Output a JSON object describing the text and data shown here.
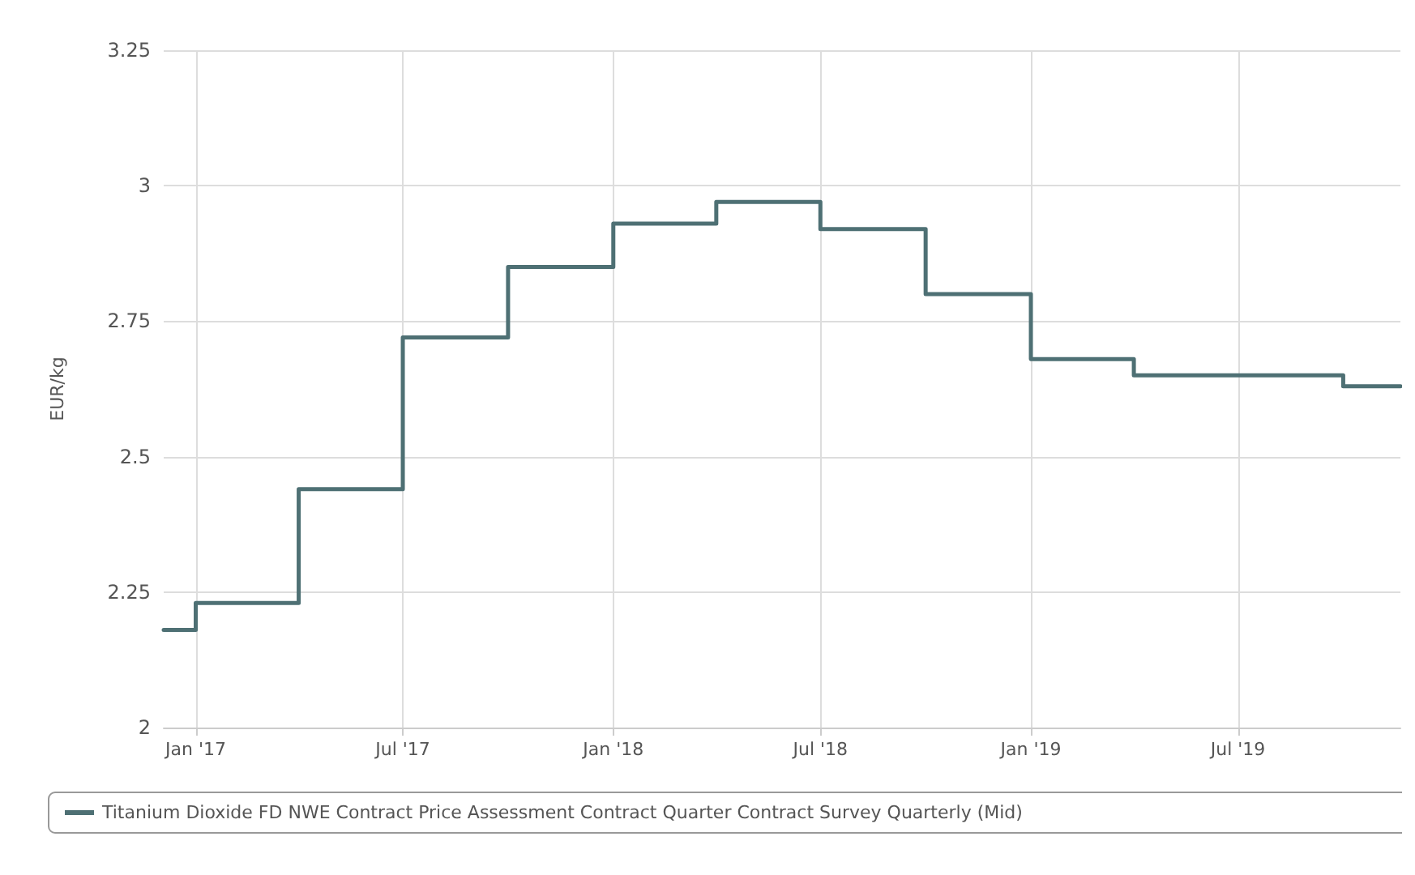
{
  "chart_data": {
    "type": "step",
    "ylabel": "EUR/kg",
    "x": [
      "2016-12-04",
      "2017-01-01",
      "2017-04-01",
      "2017-07-01",
      "2017-10-01",
      "2018-01-01",
      "2018-04-01",
      "2018-07-01",
      "2018-10-01",
      "2019-01-01",
      "2019-04-01",
      "2019-07-01",
      "2019-10-01",
      "2019-11-20"
    ],
    "series": [
      {
        "name": "Titanium Dioxide FD NWE Contract Price Assessment Contract Quarter Contract Survey Quarterly (Mid)",
        "color": "#4e7074",
        "values": [
          2.18,
          2.23,
          2.44,
          2.72,
          2.85,
          2.93,
          2.97,
          2.92,
          2.8,
          2.68,
          2.65,
          2.65,
          2.63,
          2.63
        ]
      }
    ],
    "xlim": [
      "2016-12-04",
      "2019-11-20"
    ],
    "xticks": [
      {
        "value": "2017-01-01",
        "label": "Jan '17"
      },
      {
        "value": "2017-07-01",
        "label": "Jul '17"
      },
      {
        "value": "2018-01-01",
        "label": "Jan '18"
      },
      {
        "value": "2018-07-01",
        "label": "Jul '18"
      },
      {
        "value": "2019-01-01",
        "label": "Jan '19"
      },
      {
        "value": "2019-07-01",
        "label": "Jul '19"
      }
    ],
    "ylim": [
      2,
      3.25
    ],
    "yticks": [
      2,
      2.25,
      2.5,
      2.75,
      3,
      3.25
    ],
    "grid": true,
    "legend": "bottom",
    "marker": "none",
    "line_style": "solid"
  }
}
